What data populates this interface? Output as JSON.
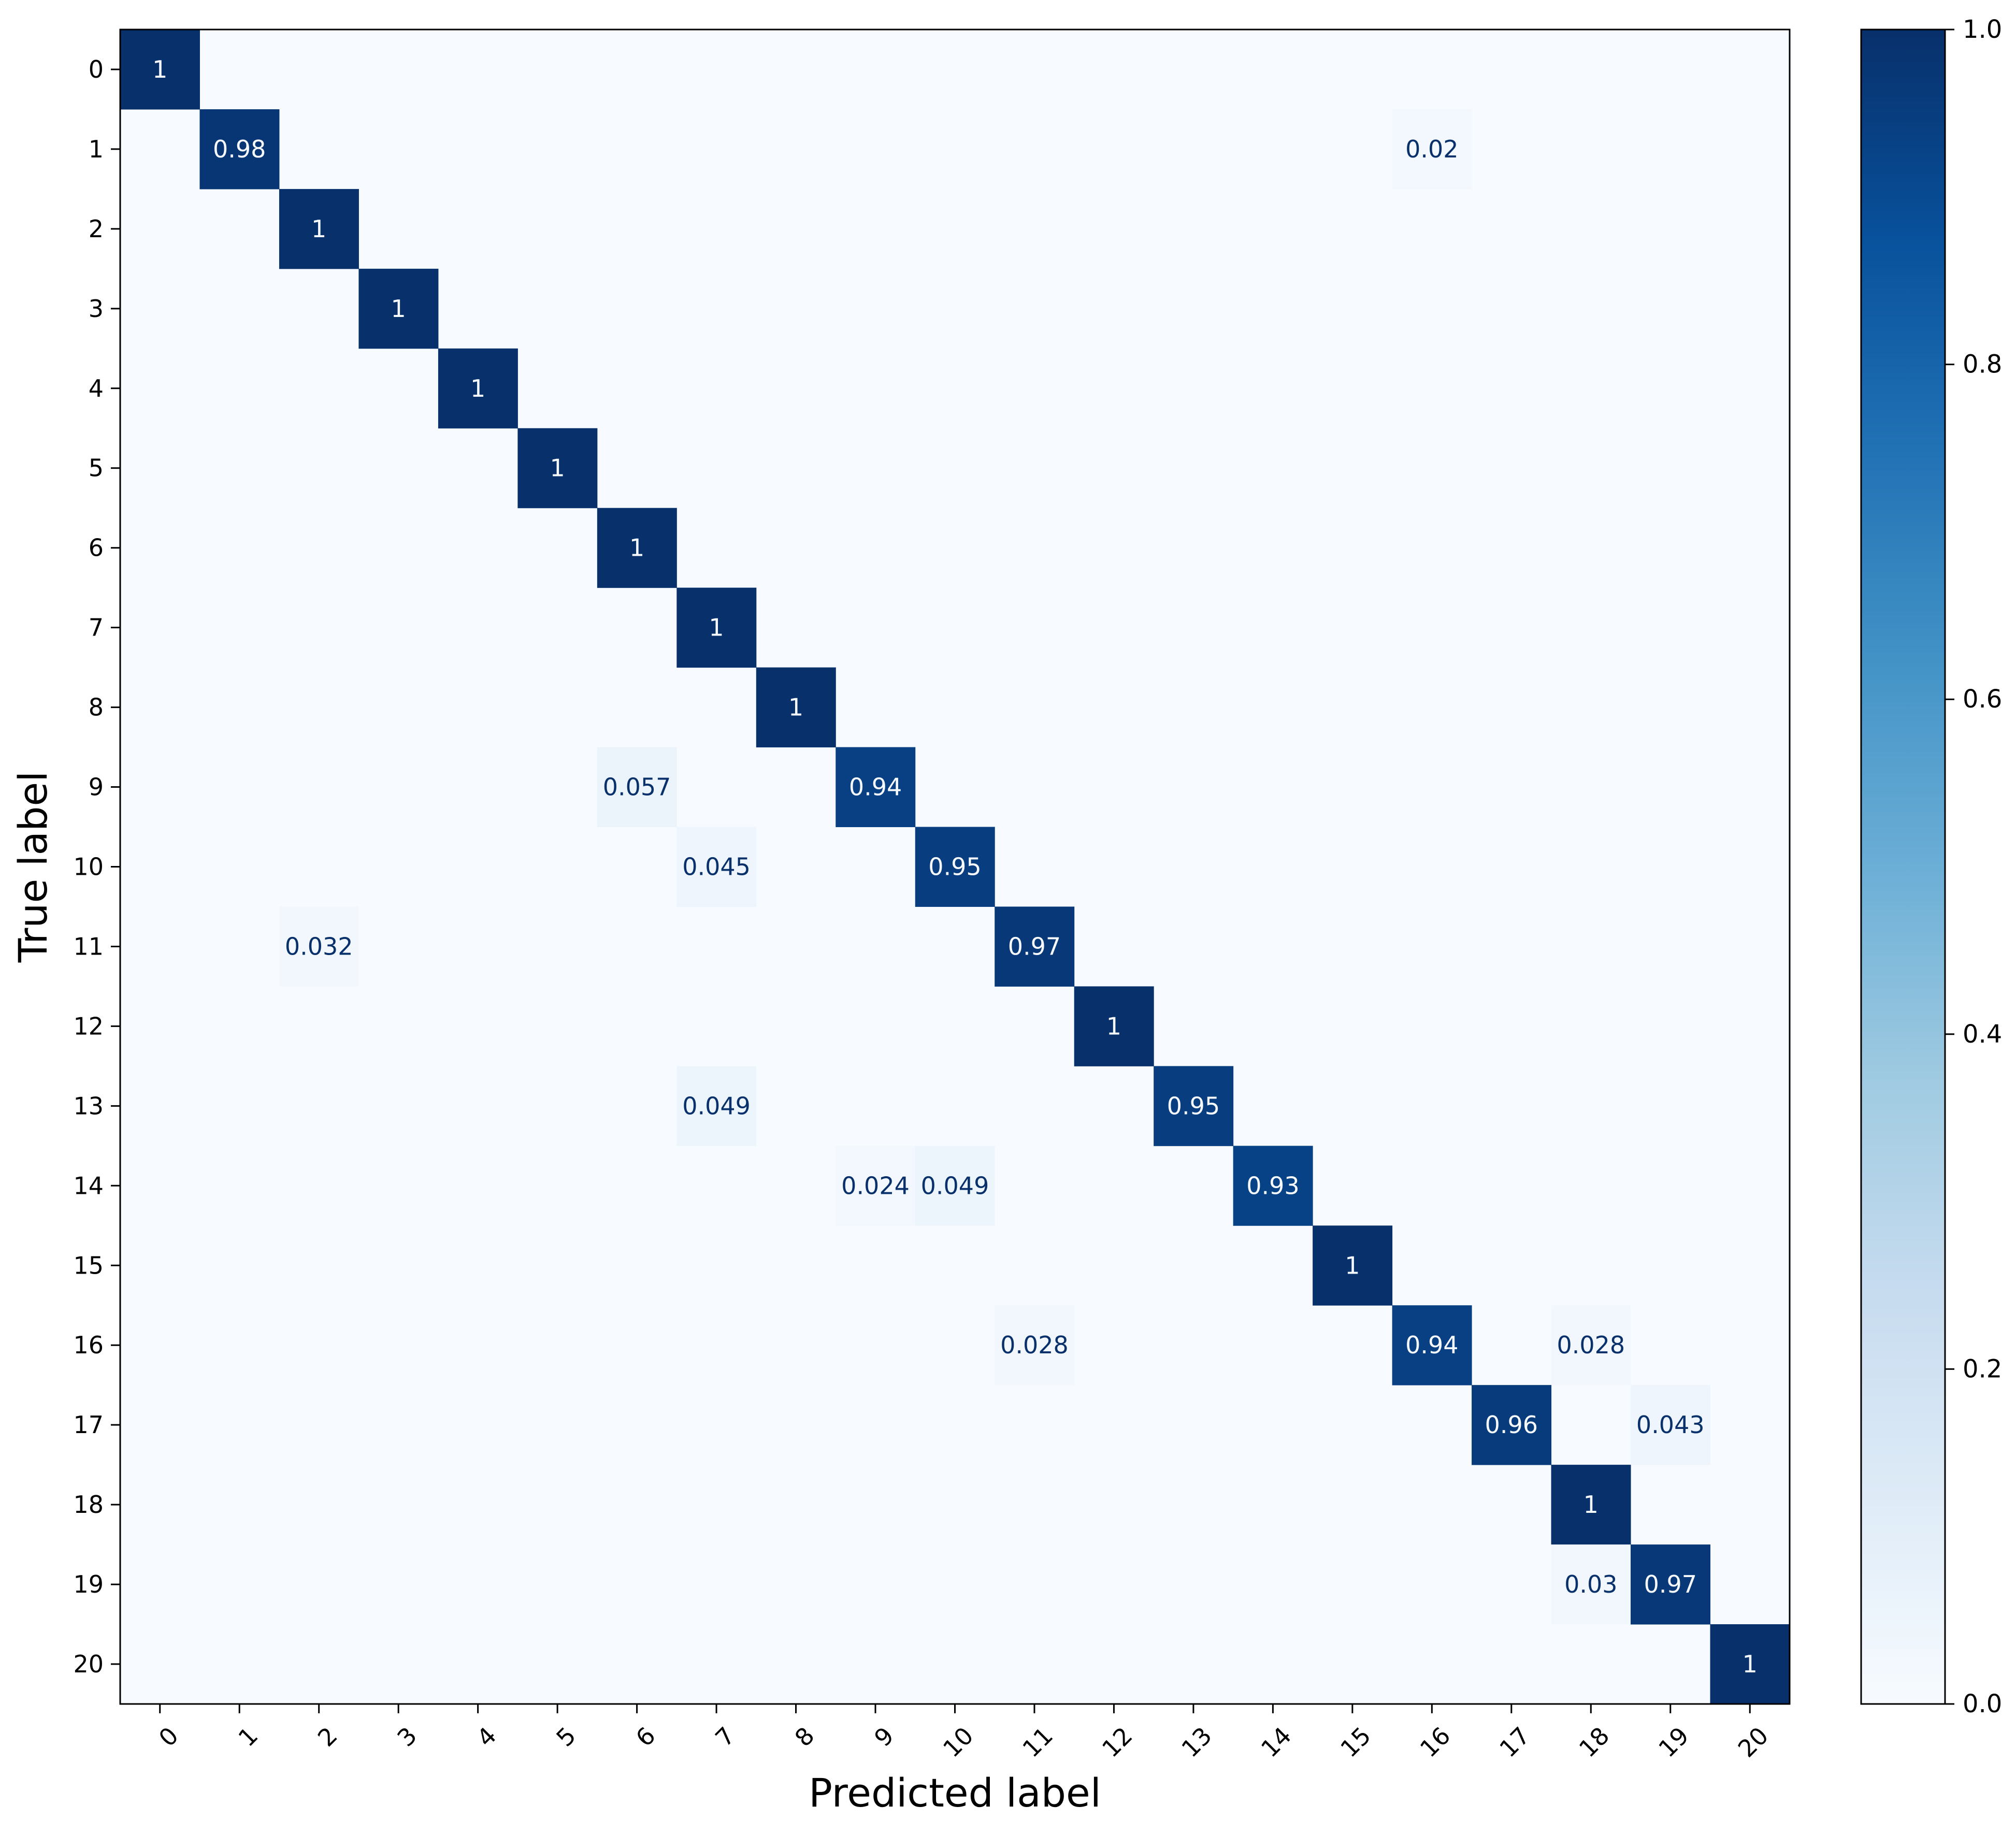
{
  "chart_data": {
    "type": "heatmap",
    "title": "",
    "xlabel": "Predicted label",
    "ylabel": "True label",
    "x_categories": [
      "0",
      "1",
      "2",
      "3",
      "4",
      "5",
      "6",
      "7",
      "8",
      "9",
      "10",
      "11",
      "12",
      "13",
      "14",
      "15",
      "16",
      "17",
      "18",
      "19",
      "20"
    ],
    "y_categories": [
      "0",
      "1",
      "2",
      "3",
      "4",
      "5",
      "6",
      "7",
      "8",
      "9",
      "10",
      "11",
      "12",
      "13",
      "14",
      "15",
      "16",
      "17",
      "18",
      "19",
      "20"
    ],
    "colormap": "Blues",
    "cmap_low": "#f7fbff",
    "cmap_high": "#08306b",
    "vmin": 0.0,
    "vmax": 1.0,
    "colorbar_ticks": [
      "0.0",
      "0.2",
      "0.4",
      "0.6",
      "0.8",
      "1.0"
    ],
    "tick_label_rotation_x": 45,
    "cells": [
      {
        "row": 0,
        "col": 0,
        "value": 1,
        "label": "1"
      },
      {
        "row": 1,
        "col": 1,
        "value": 0.98,
        "label": "0.98"
      },
      {
        "row": 1,
        "col": 16,
        "value": 0.02,
        "label": "0.02"
      },
      {
        "row": 2,
        "col": 2,
        "value": 1,
        "label": "1"
      },
      {
        "row": 3,
        "col": 3,
        "value": 1,
        "label": "1"
      },
      {
        "row": 4,
        "col": 4,
        "value": 1,
        "label": "1"
      },
      {
        "row": 5,
        "col": 5,
        "value": 1,
        "label": "1"
      },
      {
        "row": 6,
        "col": 6,
        "value": 1,
        "label": "1"
      },
      {
        "row": 7,
        "col": 7,
        "value": 1,
        "label": "1"
      },
      {
        "row": 8,
        "col": 8,
        "value": 1,
        "label": "1"
      },
      {
        "row": 9,
        "col": 6,
        "value": 0.057,
        "label": "0.057"
      },
      {
        "row": 9,
        "col": 9,
        "value": 0.94,
        "label": "0.94"
      },
      {
        "row": 10,
        "col": 7,
        "value": 0.045,
        "label": "0.045"
      },
      {
        "row": 10,
        "col": 10,
        "value": 0.95,
        "label": "0.95"
      },
      {
        "row": 11,
        "col": 2,
        "value": 0.032,
        "label": "0.032"
      },
      {
        "row": 11,
        "col": 11,
        "value": 0.97,
        "label": "0.97"
      },
      {
        "row": 12,
        "col": 12,
        "value": 1,
        "label": "1"
      },
      {
        "row": 13,
        "col": 7,
        "value": 0.049,
        "label": "0.049"
      },
      {
        "row": 13,
        "col": 13,
        "value": 0.95,
        "label": "0.95"
      },
      {
        "row": 14,
        "col": 9,
        "value": 0.024,
        "label": "0.024"
      },
      {
        "row": 14,
        "col": 10,
        "value": 0.049,
        "label": "0.049"
      },
      {
        "row": 14,
        "col": 14,
        "value": 0.93,
        "label": "0.93"
      },
      {
        "row": 15,
        "col": 15,
        "value": 1,
        "label": "1"
      },
      {
        "row": 16,
        "col": 11,
        "value": 0.028,
        "label": "0.028"
      },
      {
        "row": 16,
        "col": 16,
        "value": 0.94,
        "label": "0.94"
      },
      {
        "row": 16,
        "col": 18,
        "value": 0.028,
        "label": "0.028"
      },
      {
        "row": 17,
        "col": 17,
        "value": 0.96,
        "label": "0.96"
      },
      {
        "row": 17,
        "col": 19,
        "value": 0.043,
        "label": "0.043"
      },
      {
        "row": 18,
        "col": 18,
        "value": 1,
        "label": "1"
      },
      {
        "row": 19,
        "col": 18,
        "value": 0.03,
        "label": "0.03"
      },
      {
        "row": 19,
        "col": 19,
        "value": 0.97,
        "label": "0.97"
      },
      {
        "row": 20,
        "col": 20,
        "value": 1,
        "label": "1"
      }
    ]
  }
}
